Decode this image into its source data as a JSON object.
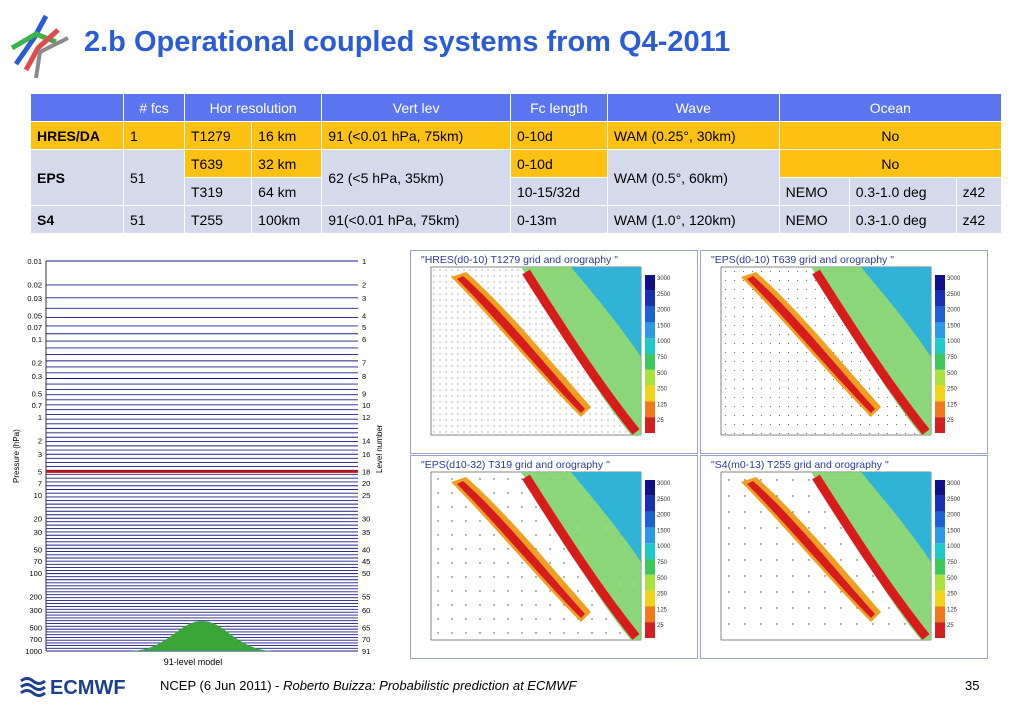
{
  "title": "2.b Operational coupled systems from Q4-2011",
  "table": {
    "headers": [
      "",
      "# fcs",
      "Hor resolution",
      "Vert lev",
      "Fc length",
      "Wave",
      "Ocean"
    ],
    "rows": {
      "hres": {
        "name": "HRES/DA",
        "fcs": "1",
        "hor1": "T1279",
        "hor2": "16 km",
        "vert": "91 (<0.01 hPa, 75km)",
        "fc": "0-10d",
        "wave": "WAM (0.25°, 30km)",
        "ocean": "No"
      },
      "eps": {
        "name": "EPS",
        "fcs": "51",
        "hor1a": "T639",
        "hor2a": "32 km",
        "hor1b": "T319",
        "hor2b": "64 km",
        "vert": "62 (<5 hPa, 35km)",
        "fca": "0-10d",
        "fcb": "10-15/32d",
        "wave": "WAM (0.5°, 60km)",
        "ocean_a": "No",
        "ocean_b1": "NEMO",
        "ocean_b2": "0.3-1.0 deg",
        "ocean_b3": "z42"
      },
      "s4": {
        "name": "S4",
        "fcs": "51",
        "hor1": "T255",
        "hor2": "100km",
        "vert": "91(<0.01 hPa, 75km)",
        "fc": "0-13m",
        "wave": "WAM (1.0°, 120km)",
        "ocean1": "NEMO",
        "ocean2": "0.3-1.0 deg",
        "ocean3": "z42"
      }
    }
  },
  "pressure_plot": {
    "ylabel": "Pressure (hPa)",
    "ylabel_right": "Level number",
    "caption": "91-level model",
    "pressure_ticks": [
      "0.01",
      "0.02",
      "0.03",
      "0.05",
      "0.07",
      "0.1",
      "0.2",
      "0.3",
      "0.5",
      "0.7",
      "1",
      "2",
      "3",
      "5",
      "7",
      "10",
      "20",
      "30",
      "50",
      "70",
      "100",
      "200",
      "300",
      "500",
      "700",
      "1000"
    ],
    "level_ticks": [
      "1",
      "2",
      "3",
      "4",
      "5",
      "6",
      "7",
      "8",
      "9",
      "10",
      "12",
      "14",
      "16",
      "18",
      "20",
      "25",
      "30",
      "35",
      "40",
      "45",
      "50",
      "55",
      "60",
      "65",
      "70",
      "91"
    ],
    "colors": {
      "levels": "#1a1a8c",
      "highlight": "#cc1111",
      "orography": "#3aa63a"
    }
  },
  "maps": [
    {
      "title": "\"HRES(d0-10) T1279 grid and orography \""
    },
    {
      "title": "\"EPS(d0-10) T639 grid and orography \""
    },
    {
      "title": "\"EPS(d10-32) T319 grid and orography \""
    },
    {
      "title": "\"S4(m0-13) T255 grid and orography \""
    }
  ],
  "colorbar_labels": [
    "3000",
    "2500",
    "2000",
    "1500",
    "1000",
    "750",
    "500",
    "250",
    "125",
    "25"
  ],
  "footer": {
    "text": "NCEP (6 Jun 2011) - ",
    "italic": "Roberto Buizza: Probabilistic prediction at ECMWF",
    "page": "35"
  },
  "logo_text": "ECMWF"
}
